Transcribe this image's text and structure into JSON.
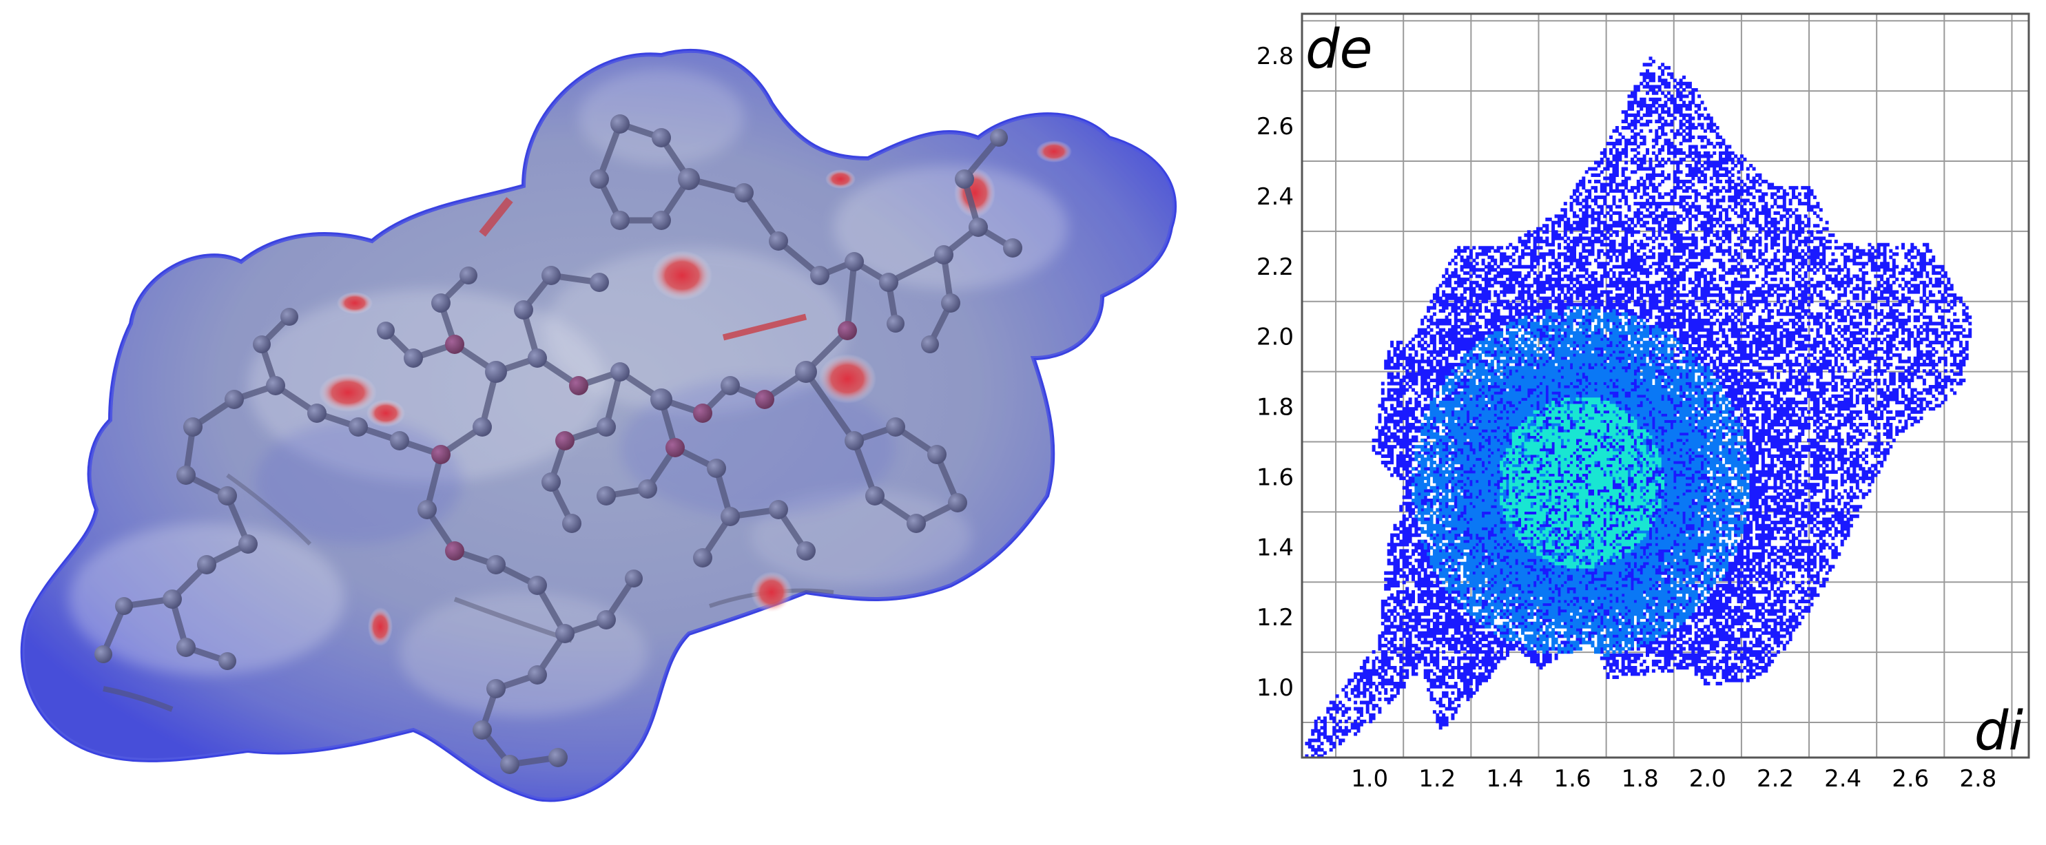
{
  "chart_data": [
    {
      "type": "image",
      "subject": "3D molecular surface with embedded ball-and-stick molecule"
    },
    {
      "type": "heatmap",
      "xlabel": "di",
      "ylabel": "de",
      "xlim": [
        0.8,
        2.95
      ],
      "ylim": [
        0.8,
        2.92
      ],
      "x_ticks": [
        "1.0",
        "1.2",
        "1.4",
        "1.6",
        "1.8",
        "2.0",
        "2.2",
        "2.4",
        "2.6",
        "2.8"
      ],
      "y_ticks": [
        "1.0",
        "1.2",
        "1.4",
        "1.6",
        "1.8",
        "2.0",
        "2.2",
        "2.4",
        "2.6",
        "2.8"
      ],
      "grid": true,
      "colors": {
        "low": "#1a1aff",
        "mid": "#0a78f5",
        "high": "#19e6d2"
      }
    }
  ]
}
